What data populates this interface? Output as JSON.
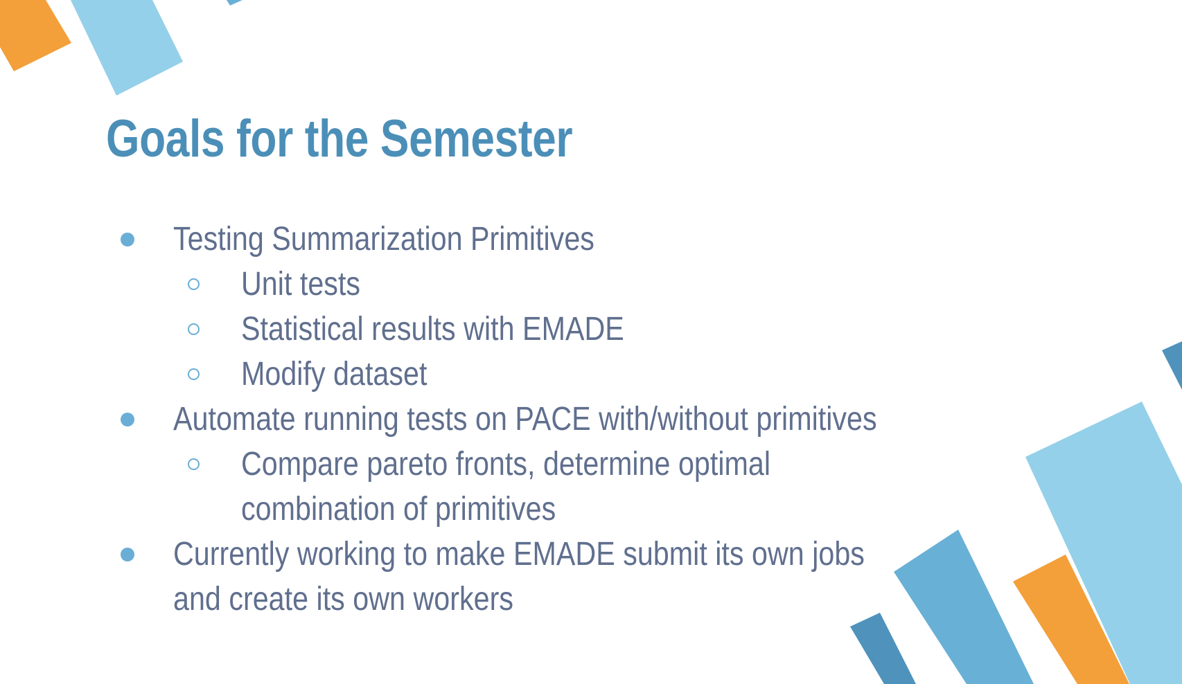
{
  "slide": {
    "title": "Goals for the Semester",
    "bullets": [
      {
        "text": "Testing Summarization Primitives",
        "subitems": [
          "Unit tests",
          "Statistical results with EMADE",
          "Modify dataset"
        ]
      },
      {
        "text": "Automate running tests on PACE with/without primitives",
        "subitems": [
          "Compare pareto fronts, determine optimal",
          "combination of primitives"
        ]
      },
      {
        "text": "Currently working to make EMADE submit its own jobs",
        "continuation": "and create its own workers"
      }
    ]
  },
  "colors": {
    "title": "#4b8fb8",
    "body_text": "#606f8e",
    "bullet": "#6aaed6",
    "accent_orange": "#f39f3a",
    "accent_light_blue": "#94d0e9",
    "accent_mid_blue": "#68b0d6",
    "accent_dark_blue": "#4f93bc"
  }
}
